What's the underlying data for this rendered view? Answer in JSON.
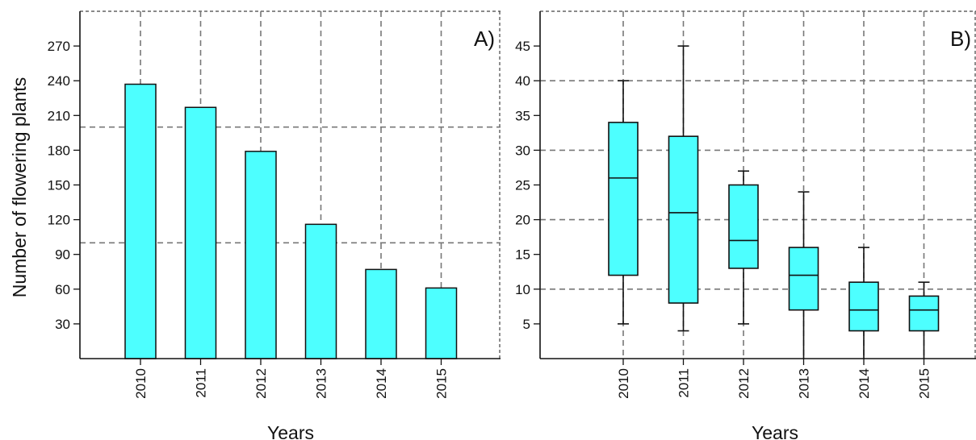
{
  "chart_data": [
    {
      "type": "bar",
      "panel_label": "A)",
      "categories": [
        "2010",
        "2011",
        "2012",
        "2013",
        "2014",
        "2015"
      ],
      "values": [
        237,
        217,
        179,
        116,
        77,
        61
      ],
      "xlabel": "Years",
      "ylabel": "Number of flowering plants",
      "yticks": [
        "30",
        "60",
        "90",
        "120",
        "150",
        "180",
        "210",
        "240",
        "270"
      ],
      "ylim": [
        0,
        300
      ],
      "grid": true,
      "colors": {
        "fill": "#4dffff",
        "stroke": "#111111",
        "grid": "#777777"
      }
    },
    {
      "type": "box",
      "panel_label": "B)",
      "categories": [
        "2010",
        "2011",
        "2012",
        "2013",
        "2014",
        "2015"
      ],
      "series": [
        {
          "category": "2010",
          "min": 5,
          "q1": 12,
          "median": 26,
          "q3": 34,
          "max": 40
        },
        {
          "category": "2011",
          "min": 4,
          "q1": 8,
          "median": 21,
          "q3": 32,
          "max": 45
        },
        {
          "category": "2012",
          "min": 5,
          "q1": 13,
          "median": 17,
          "q3": 25,
          "max": 27
        },
        {
          "category": "2013",
          "min": 0,
          "q1": 7,
          "median": 12,
          "q3": 16,
          "max": 24
        },
        {
          "category": "2014",
          "min": 0,
          "q1": 4,
          "median": 7,
          "q3": 11,
          "max": 16
        },
        {
          "category": "2015",
          "min": 0,
          "q1": 4,
          "median": 7,
          "q3": 9,
          "max": 11
        }
      ],
      "xlabel": "Years",
      "ylabel": "",
      "yticks": [
        "5",
        "10",
        "15",
        "20",
        "25",
        "30",
        "35",
        "40",
        "45"
      ],
      "ylim": [
        0,
        50
      ],
      "grid": true,
      "colors": {
        "fill": "#4dffff",
        "stroke": "#111111",
        "grid": "#777777"
      }
    }
  ]
}
